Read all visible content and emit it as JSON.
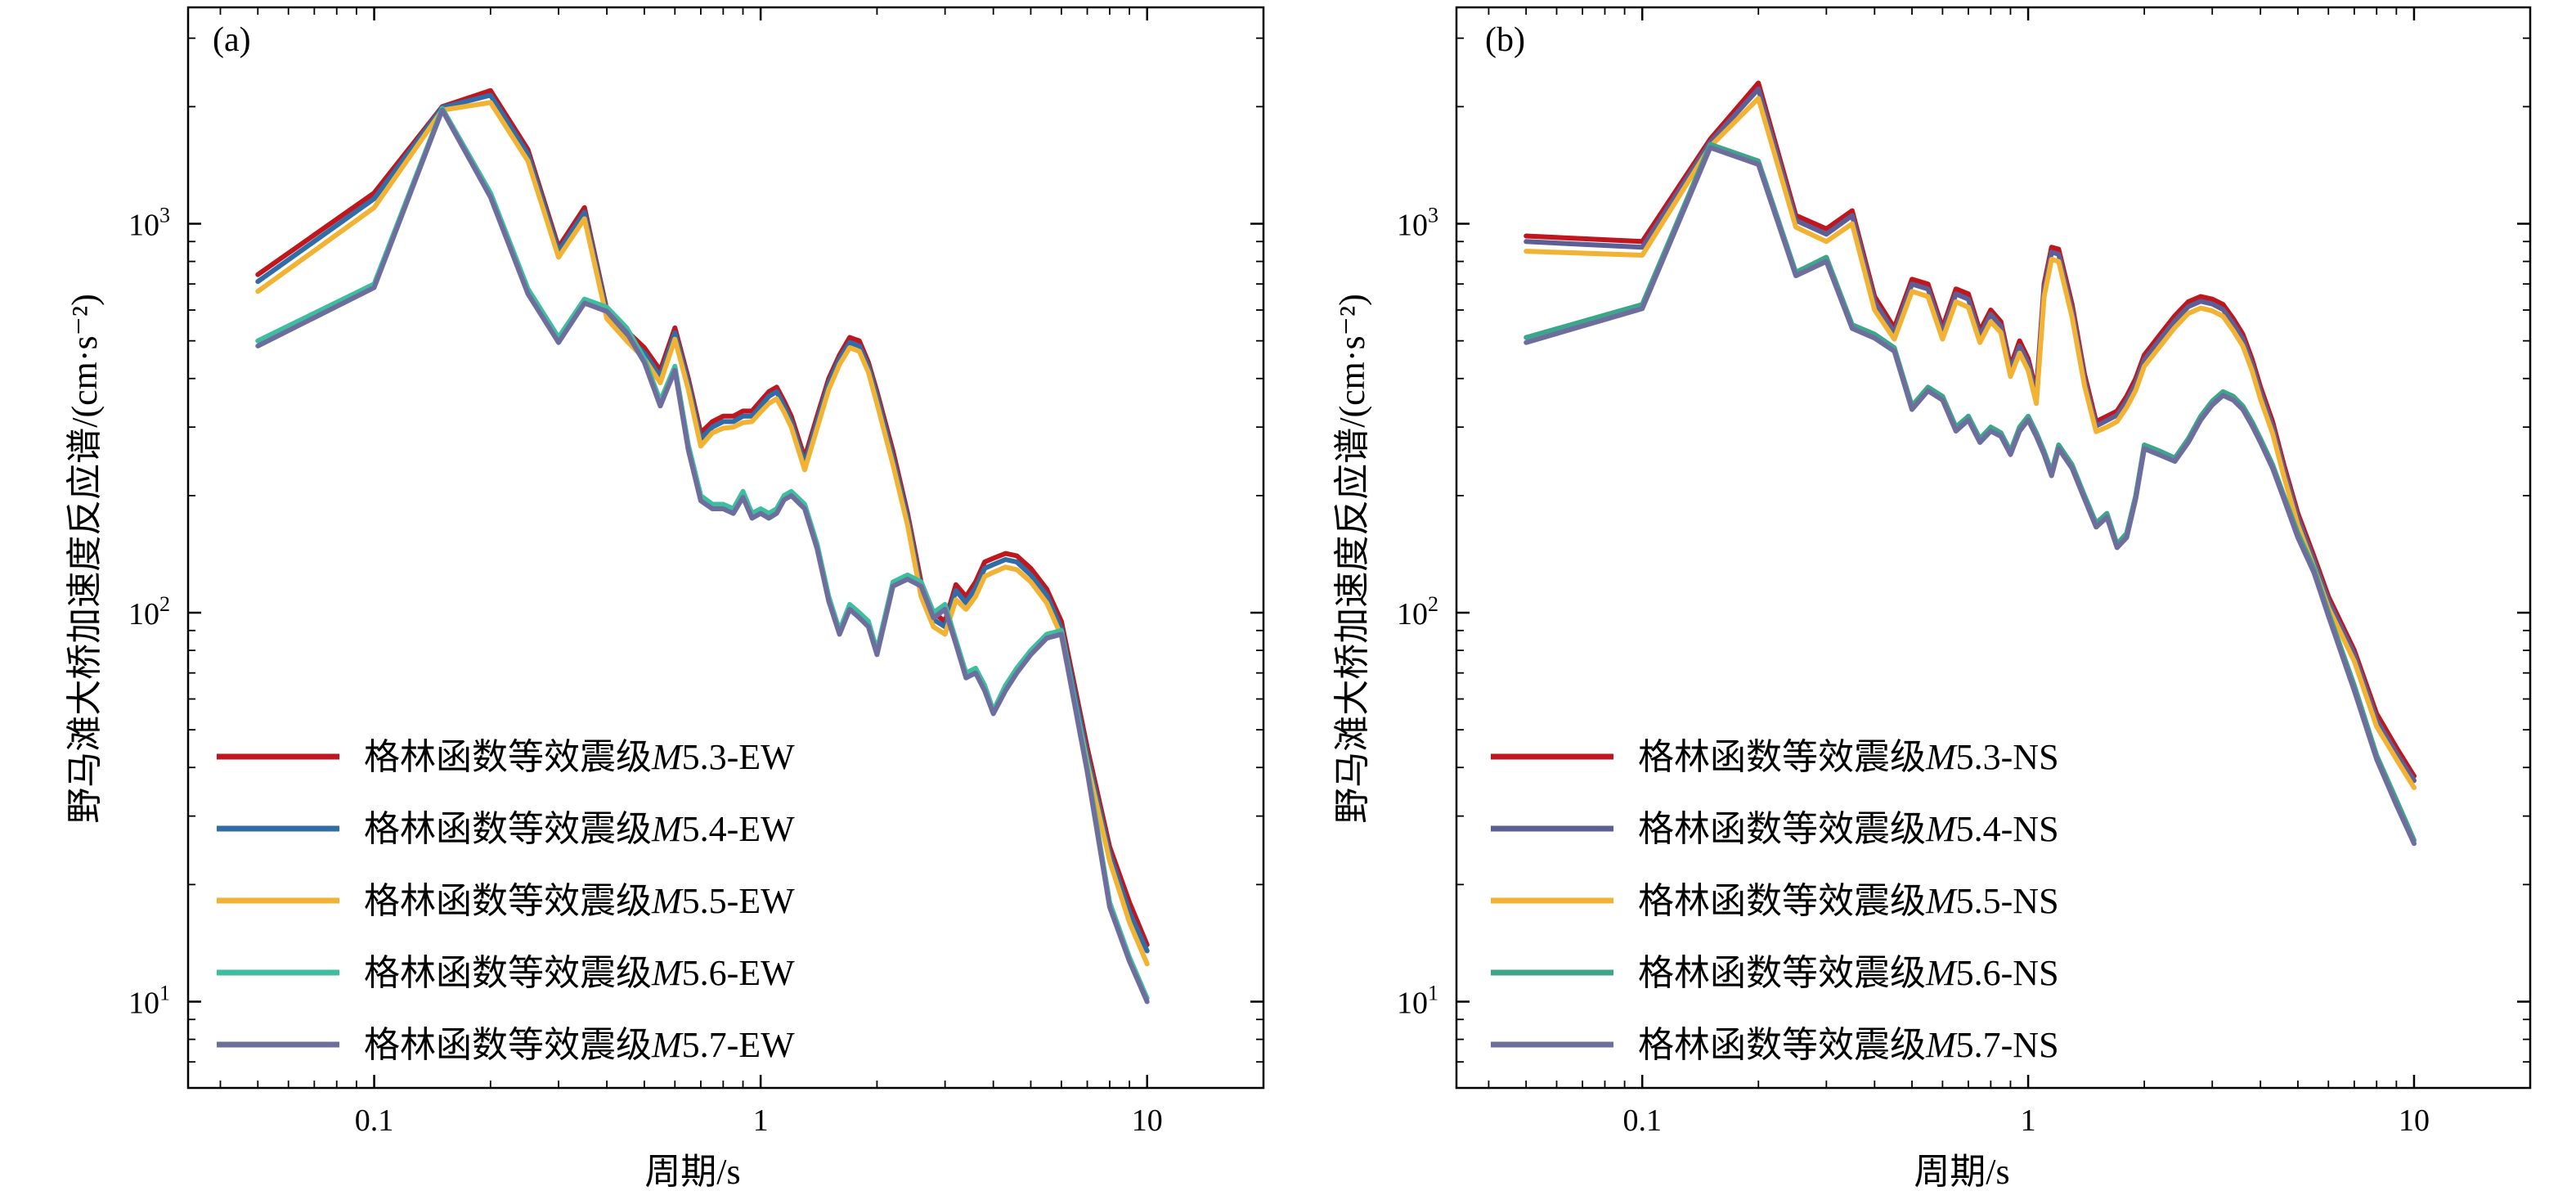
{
  "chart_data": [
    {
      "type": "line",
      "panel": "(a)",
      "xlabel": "周期/s",
      "ylabel": "野马滩大桥加速度反应谱/(cm·s⁻²)",
      "xscale": "log",
      "yscale": "log",
      "xlim": [
        0.033,
        20
      ],
      "ylim": [
        6,
        3600
      ],
      "xticks": [
        {
          "value": 0.1,
          "label": "0.1"
        },
        {
          "value": 1,
          "label": "1"
        },
        {
          "value": 10,
          "label": "10"
        }
      ],
      "yticks": [
        {
          "value": 10,
          "base": "10",
          "exp": "1"
        },
        {
          "value": 100,
          "base": "10",
          "exp": "2"
        },
        {
          "value": 1000,
          "base": "10",
          "exp": "3"
        }
      ],
      "legend_position": "bottom-left",
      "x": [
        0.05,
        0.1,
        0.15,
        0.2,
        0.25,
        0.3,
        0.35,
        0.4,
        0.45,
        0.5,
        0.55,
        0.6,
        0.65,
        0.7,
        0.75,
        0.8,
        0.85,
        0.9,
        0.95,
        1.0,
        1.05,
        1.1,
        1.15,
        1.2,
        1.3,
        1.4,
        1.5,
        1.6,
        1.7,
        1.8,
        1.9,
        2.0,
        2.2,
        2.4,
        2.6,
        2.8,
        3.0,
        3.2,
        3.4,
        3.6,
        3.8,
        4.0,
        4.3,
        4.6,
        5.0,
        5.5,
        6.0,
        7.0,
        8.0,
        9.0,
        10.0
      ],
      "series": [
        {
          "name": "格林函数等效震级M5.3-EW",
          "label_prefix": "格林函数等效震级",
          "label_mag": "M",
          "label_suffix": "5.3-EW",
          "color": "#C0161E",
          "values": [
            740,
            1200,
            2000,
            2200,
            1550,
            870,
            1100,
            600,
            530,
            480,
            420,
            540,
            400,
            290,
            310,
            320,
            320,
            330,
            330,
            350,
            370,
            380,
            350,
            320,
            250,
            320,
            400,
            460,
            510,
            500,
            440,
            370,
            260,
            180,
            120,
            100,
            95,
            118,
            110,
            120,
            135,
            138,
            142,
            140,
            130,
            115,
            95,
            45,
            25,
            18,
            14
          ]
        },
        {
          "name": "格林函数等效震级M5.4-EW",
          "label_prefix": "格林函数等效震级",
          "label_mag": "M",
          "label_suffix": "5.4-EW",
          "color": "#2F6CA8",
          "values": [
            710,
            1160,
            1990,
            2140,
            1510,
            850,
            1070,
            590,
            515,
            465,
            405,
            525,
            390,
            280,
            300,
            310,
            310,
            320,
            320,
            340,
            360,
            370,
            340,
            310,
            242,
            310,
            390,
            450,
            495,
            485,
            430,
            360,
            250,
            175,
            115,
            96,
            92,
            114,
            106,
            116,
            130,
            133,
            137,
            135,
            125,
            111,
            91,
            43,
            24,
            17,
            13.5
          ]
        },
        {
          "name": "格林函数等效震级M5.5-EW",
          "label_prefix": "格林函数等效震级",
          "label_mag": "M",
          "label_suffix": "5.5-EW",
          "color": "#F2B233",
          "values": [
            670,
            1100,
            1960,
            2050,
            1450,
            820,
            1030,
            570,
            500,
            450,
            390,
            505,
            375,
            268,
            290,
            298,
            300,
            308,
            310,
            328,
            345,
            355,
            328,
            300,
            233,
            298,
            375,
            435,
            480,
            470,
            415,
            345,
            240,
            168,
            110,
            92,
            88,
            108,
            102,
            110,
            124,
            127,
            131,
            129,
            120,
            106,
            87,
            41,
            23,
            16,
            12.5
          ]
        },
        {
          "name": "格林函数等效震级M5.6-EW",
          "label_prefix": "格林函数等效震级",
          "label_mag": "M",
          "label_suffix": "5.6-EW",
          "color": "#3DBE9E",
          "values": [
            500,
            700,
            1980,
            1200,
            680,
            510,
            640,
            610,
            540,
            450,
            350,
            430,
            270,
            200,
            190,
            190,
            185,
            205,
            180,
            185,
            180,
            185,
            200,
            205,
            190,
            150,
            110,
            90,
            105,
            100,
            95,
            80,
            120,
            125,
            120,
            100,
            105,
            85,
            70,
            72,
            65,
            56,
            65,
            72,
            80,
            88,
            90,
            40,
            18,
            13,
            10.2
          ]
        },
        {
          "name": "格林函数等效震级M5.7-EW",
          "label_prefix": "格林函数等效震级",
          "label_mag": "M",
          "label_suffix": "5.7-EW",
          "color": "#6E6E9E",
          "values": [
            485,
            685,
            1960,
            1170,
            660,
            495,
            625,
            595,
            525,
            440,
            340,
            420,
            262,
            194,
            185,
            185,
            180,
            198,
            175,
            180,
            175,
            180,
            195,
            200,
            185,
            146,
            107,
            88,
            102,
            97,
            92,
            78,
            117,
            122,
            117,
            97,
            102,
            83,
            68,
            70,
            63,
            55,
            63,
            70,
            78,
            86,
            88,
            39,
            17.5,
            12.7,
            10
          ]
        }
      ]
    },
    {
      "type": "line",
      "panel": "(b)",
      "xlabel": "周期/s",
      "ylabel": "野马滩大桥加速度反应谱/(cm·s⁻²)",
      "xscale": "log",
      "yscale": "log",
      "xlim": [
        0.033,
        20
      ],
      "ylim": [
        6,
        3600
      ],
      "xticks": [
        {
          "value": 0.1,
          "label": "0.1"
        },
        {
          "value": 1,
          "label": "1"
        },
        {
          "value": 10,
          "label": "10"
        }
      ],
      "yticks": [
        {
          "value": 10,
          "base": "10",
          "exp": "1"
        },
        {
          "value": 100,
          "base": "10",
          "exp": "2"
        },
        {
          "value": 1000,
          "base": "10",
          "exp": "3"
        }
      ],
      "legend_position": "bottom-left",
      "x": [
        0.05,
        0.1,
        0.15,
        0.2,
        0.25,
        0.3,
        0.35,
        0.4,
        0.45,
        0.5,
        0.55,
        0.6,
        0.65,
        0.7,
        0.75,
        0.8,
        0.85,
        0.9,
        0.95,
        1.0,
        1.05,
        1.1,
        1.15,
        1.2,
        1.3,
        1.4,
        1.5,
        1.6,
        1.7,
        1.8,
        1.9,
        2.0,
        2.2,
        2.4,
        2.6,
        2.8,
        3.0,
        3.2,
        3.4,
        3.6,
        3.8,
        4.0,
        4.3,
        4.6,
        5.0,
        5.5,
        6.0,
        7.0,
        8.0,
        9.0,
        10.0
      ],
      "series": [
        {
          "name": "格林函数等效震级M5.3-NS",
          "label_prefix": "格林函数等效震级",
          "label_mag": "M",
          "label_suffix": "5.3-NS",
          "color": "#C0161E",
          "values": [
            930,
            900,
            1650,
            2300,
            1050,
            970,
            1080,
            650,
            540,
            720,
            700,
            540,
            680,
            660,
            530,
            600,
            560,
            430,
            500,
            450,
            370,
            700,
            870,
            860,
            620,
            410,
            310,
            320,
            330,
            360,
            400,
            460,
            520,
            580,
            630,
            650,
            640,
            620,
            570,
            520,
            450,
            380,
            310,
            240,
            180,
            140,
            110,
            80,
            55,
            45,
            38
          ]
        },
        {
          "name": "格林函数等效震级M5.4-NS",
          "label_prefix": "格林函数等效震级",
          "label_mag": "M",
          "label_suffix": "5.4-NS",
          "color": "#5E5E96",
          "values": [
            900,
            870,
            1620,
            2220,
            1020,
            940,
            1050,
            630,
            525,
            700,
            680,
            525,
            660,
            640,
            515,
            585,
            545,
            420,
            485,
            438,
            360,
            680,
            845,
            835,
            600,
            398,
            302,
            312,
            322,
            350,
            388,
            447,
            505,
            563,
            612,
            632,
            622,
            602,
            553,
            505,
            437,
            369,
            301,
            233,
            175,
            136,
            107,
            78,
            53,
            43.5,
            37
          ]
        },
        {
          "name": "格林函数等效震级M5.5-NS",
          "label_prefix": "格林函数等效震级",
          "label_mag": "M",
          "label_suffix": "5.5-NS",
          "color": "#F2B233",
          "values": [
            850,
            830,
            1580,
            2100,
            980,
            900,
            1000,
            600,
            505,
            670,
            650,
            505,
            630,
            610,
            495,
            560,
            525,
            405,
            465,
            420,
            345,
            650,
            810,
            800,
            575,
            383,
            292,
            300,
            310,
            337,
            373,
            430,
            485,
            541,
            588,
            607,
            597,
            578,
            531,
            485,
            420,
            354,
            289,
            224,
            168,
            131,
            103,
            75,
            51,
            42,
            35.5
          ]
        },
        {
          "name": "格林函数等效震级M5.6-NS",
          "label_prefix": "格林函数等效震级",
          "label_mag": "M",
          "label_suffix": "5.6-NS",
          "color": "#3DA58A",
          "values": [
            510,
            620,
            1600,
            1450,
            750,
            820,
            550,
            520,
            480,
            340,
            380,
            360,
            300,
            320,
            280,
            300,
            290,
            260,
            300,
            320,
            290,
            260,
            230,
            270,
            240,
            200,
            170,
            180,
            150,
            160,
            200,
            270,
            260,
            250,
            280,
            320,
            350,
            370,
            360,
            340,
            310,
            280,
            240,
            200,
            160,
            130,
            100,
            65,
            43,
            33,
            26
          ]
        },
        {
          "name": "格林函数等效震级M5.7-NS",
          "label_prefix": "格林函数等效震级",
          "label_mag": "M",
          "label_suffix": "5.7-NS",
          "color": "#6E6E9E",
          "values": [
            495,
            605,
            1570,
            1420,
            735,
            800,
            538,
            508,
            470,
            333,
            372,
            352,
            293,
            313,
            274,
            293,
            284,
            255,
            293,
            313,
            284,
            255,
            225,
            264,
            235,
            196,
            166,
            176,
            147,
            156,
            196,
            264,
            254,
            245,
            274,
            313,
            342,
            362,
            352,
            333,
            303,
            274,
            235,
            196,
            156,
            127,
            98,
            63,
            42,
            32,
            25.5
          ]
        }
      ]
    }
  ]
}
